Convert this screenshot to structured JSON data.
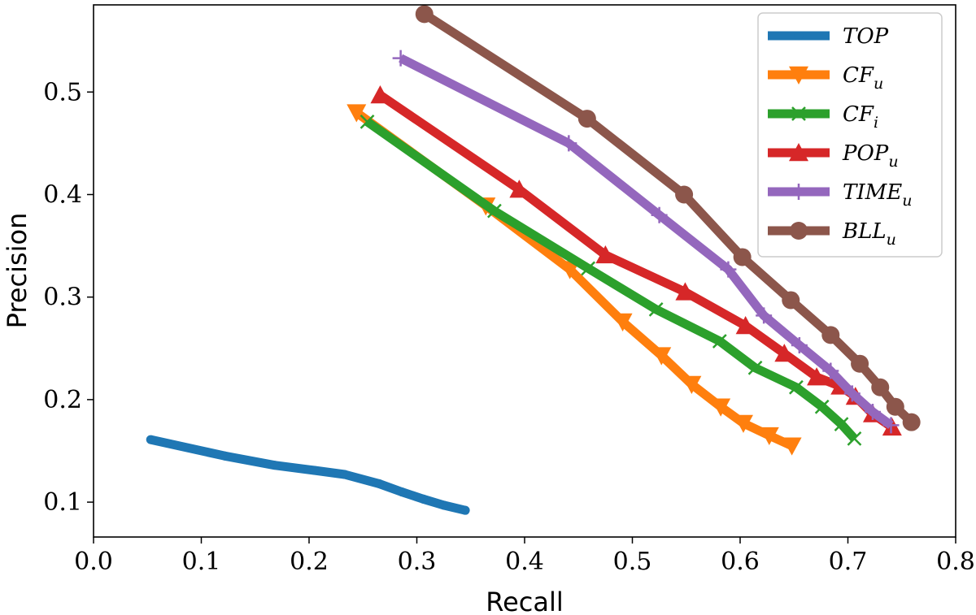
{
  "chart_data": {
    "type": "line",
    "title": "",
    "xlabel": "Recall",
    "ylabel": "Precision",
    "xlim": [
      0.0,
      0.8
    ],
    "ylim": [
      0.066,
      0.585
    ],
    "xticks": [
      0.0,
      0.1,
      0.2,
      0.3,
      0.4,
      0.5,
      0.6,
      0.7,
      0.8
    ],
    "xtick_labels": [
      "0.0",
      "0.1",
      "0.2",
      "0.3",
      "0.4",
      "0.5",
      "0.6",
      "0.7",
      "0.8"
    ],
    "yticks": [
      0.1,
      0.2,
      0.3,
      0.4,
      0.5
    ],
    "ytick_labels": [
      "0.1",
      "0.2",
      "0.3",
      "0.4",
      "0.5"
    ],
    "grid": false,
    "legend_position": "top-right",
    "series": [
      {
        "name": "TOP",
        "label_main": "TOP",
        "label_sub": "",
        "color": "#1f77b4",
        "marker": "point",
        "x": [
          0.053,
          0.122,
          0.168,
          0.205,
          0.233,
          0.265,
          0.286,
          0.306,
          0.325,
          0.345
        ],
        "y": [
          0.161,
          0.145,
          0.136,
          0.131,
          0.127,
          0.118,
          0.11,
          0.103,
          0.097,
          0.092
        ]
      },
      {
        "name": "CF_u",
        "label_main": "CF",
        "label_sub": "u",
        "color": "#ff7f0e",
        "marker": "triangle-down",
        "x": [
          0.244,
          0.364,
          0.442,
          0.491,
          0.527,
          0.555,
          0.582,
          0.603,
          0.627,
          0.648
        ],
        "y": [
          0.48,
          0.389,
          0.327,
          0.276,
          0.243,
          0.215,
          0.193,
          0.177,
          0.165,
          0.155
        ]
      },
      {
        "name": "CF_i",
        "label_main": "CF",
        "label_sub": "i",
        "color": "#2ca02c",
        "marker": "x",
        "x": [
          0.254,
          0.372,
          0.459,
          0.522,
          0.581,
          0.614,
          0.652,
          0.676,
          0.694,
          0.706
        ],
        "y": [
          0.471,
          0.384,
          0.328,
          0.288,
          0.257,
          0.231,
          0.212,
          0.193,
          0.176,
          0.162
        ]
      },
      {
        "name": "POP_u",
        "label_main": "POP",
        "label_sub": "u",
        "color": "#d62728",
        "marker": "triangle-up",
        "x": [
          0.266,
          0.395,
          0.475,
          0.549,
          0.605,
          0.641,
          0.671,
          0.693,
          0.707,
          0.723,
          0.741
        ],
        "y": [
          0.497,
          0.405,
          0.341,
          0.305,
          0.272,
          0.245,
          0.222,
          0.213,
          0.203,
          0.186,
          0.173
        ]
      },
      {
        "name": "TIME_u",
        "label_main": "TIME",
        "label_sub": "u",
        "color": "#9467bd",
        "marker": "plus",
        "x": [
          0.285,
          0.441,
          0.525,
          0.589,
          0.622,
          0.655,
          0.684,
          0.704,
          0.723,
          0.74
        ],
        "y": [
          0.533,
          0.45,
          0.38,
          0.327,
          0.282,
          0.253,
          0.228,
          0.206,
          0.188,
          0.175
        ]
      },
      {
        "name": "BLL_u",
        "label_main": "BLL",
        "label_sub": "u",
        "color": "#8c564b",
        "marker": "circle",
        "x": [
          0.307,
          0.458,
          0.548,
          0.602,
          0.647,
          0.684,
          0.711,
          0.73,
          0.744,
          0.759
        ],
        "y": [
          0.576,
          0.474,
          0.4,
          0.339,
          0.297,
          0.263,
          0.235,
          0.212,
          0.193,
          0.178
        ]
      }
    ]
  }
}
